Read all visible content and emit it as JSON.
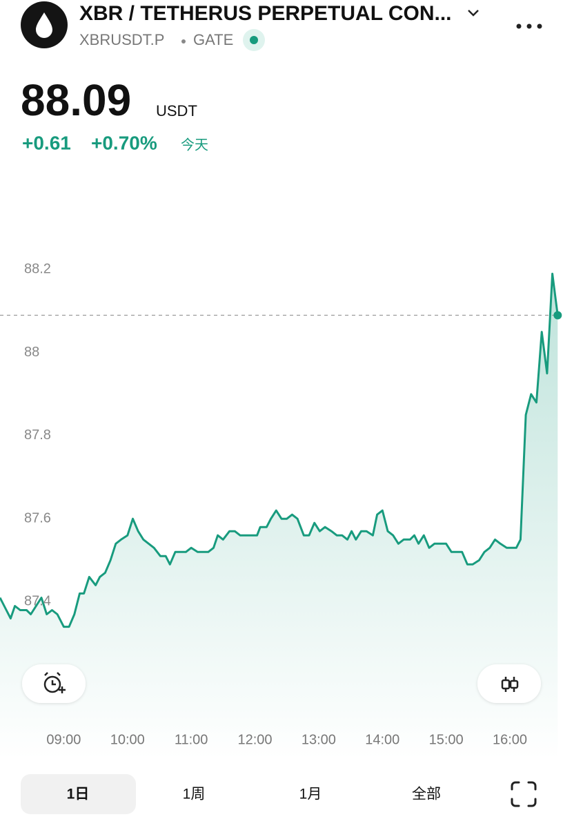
{
  "header": {
    "title": "XBR / TETHERUS PERPETUAL CON...",
    "symbol": "XBRUSDT.P",
    "exchange": "GATE"
  },
  "price": {
    "value": "88.09",
    "currency": "USDT",
    "change": "+0.61",
    "change_pct": "+0.70%",
    "period": "今天"
  },
  "chart_data": {
    "type": "line",
    "color": "#189b7e",
    "x": [
      "08:00",
      "08:06",
      "08:10",
      "08:14",
      "08:19",
      "08:25",
      "08:29",
      "08:34",
      "08:39",
      "08:44",
      "08:49",
      "08:54",
      "09:00",
      "09:05",
      "09:10",
      "09:15",
      "09:19",
      "09:24",
      "09:30",
      "09:34",
      "09:39",
      "09:44",
      "09:49",
      "09:54",
      "10:00",
      "10:05",
      "10:10",
      "10:15",
      "10:20",
      "10:25",
      "10:31",
      "10:36",
      "10:40",
      "10:45",
      "10:50",
      "10:55",
      "11:00",
      "11:06",
      "11:11",
      "11:16",
      "11:21",
      "11:25",
      "11:30",
      "11:36",
      "11:41",
      "11:46",
      "11:51",
      "11:56",
      "12:02",
      "12:05",
      "12:11",
      "12:15",
      "12:20",
      "12:25",
      "12:30",
      "12:35",
      "12:40",
      "12:46",
      "12:51",
      "12:56",
      "13:01",
      "13:06",
      "13:12",
      "13:17",
      "13:22",
      "13:27",
      "13:31",
      "13:35",
      "13:40",
      "13:45",
      "13:51",
      "13:55",
      "14:00",
      "14:05",
      "14:10",
      "14:15",
      "14:20",
      "14:26",
      "14:30",
      "14:34",
      "14:39",
      "14:44",
      "14:49",
      "14:54",
      "15:00",
      "15:05",
      "15:10",
      "15:15",
      "15:20",
      "15:25",
      "15:31",
      "15:36",
      "15:41",
      "15:46",
      "15:51",
      "15:57",
      "16:02",
      "16:06",
      "16:10",
      "16:15",
      "16:20",
      "16:25",
      "16:30",
      "16:35",
      "16:40",
      "16:45"
    ],
    "values": [
      87.41,
      87.38,
      87.36,
      87.39,
      87.38,
      87.38,
      87.37,
      87.39,
      87.41,
      87.37,
      87.38,
      87.37,
      87.34,
      87.34,
      87.37,
      87.42,
      87.42,
      87.46,
      87.44,
      87.46,
      87.47,
      87.5,
      87.54,
      87.55,
      87.56,
      87.6,
      87.57,
      87.55,
      87.54,
      87.53,
      87.51,
      87.51,
      87.49,
      87.52,
      87.52,
      87.52,
      87.53,
      87.52,
      87.52,
      87.52,
      87.53,
      87.56,
      87.55,
      87.57,
      87.57,
      87.56,
      87.56,
      87.56,
      87.56,
      87.58,
      87.58,
      87.6,
      87.62,
      87.6,
      87.6,
      87.61,
      87.6,
      87.56,
      87.56,
      87.59,
      87.57,
      87.58,
      87.57,
      87.56,
      87.56,
      87.55,
      87.57,
      87.55,
      87.57,
      87.57,
      87.56,
      87.61,
      87.62,
      87.57,
      87.56,
      87.54,
      87.55,
      87.55,
      87.56,
      87.54,
      87.56,
      87.53,
      87.54,
      87.54,
      87.54,
      87.52,
      87.52,
      87.52,
      87.49,
      87.49,
      87.5,
      87.52,
      87.53,
      87.55,
      87.54,
      87.53,
      87.53,
      87.53,
      87.55,
      87.85,
      87.9,
      87.88,
      88.05,
      87.95,
      88.19,
      88.09
    ],
    "xlim": [
      "08:00",
      "16:50"
    ],
    "xticks": [
      "09:00",
      "10:00",
      "11:00",
      "12:00",
      "13:00",
      "14:00",
      "15:00",
      "16:00"
    ],
    "ylim": [
      87.02,
      88.45
    ],
    "yticks": [
      88.2,
      88,
      87.8,
      87.6,
      87.4
    ]
  },
  "ranges": [
    "1日",
    "1周",
    "1月",
    "全部"
  ]
}
